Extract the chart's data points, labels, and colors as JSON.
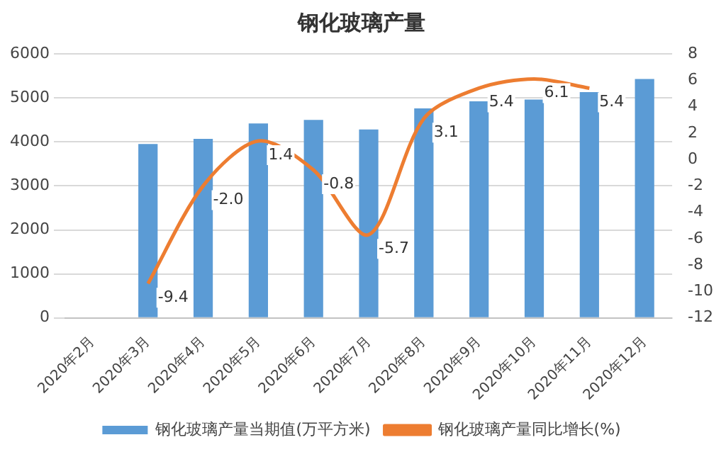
{
  "chart_data": {
    "type": "bar",
    "title": "钢化玻璃产量",
    "categories": [
      "2020年2月",
      "2020年3月",
      "2020年4月",
      "2020年5月",
      "2020年6月",
      "2020年7月",
      "2020年8月",
      "2020年9月",
      "2020年10月",
      "2020年11月",
      "2020年12月"
    ],
    "series": [
      {
        "name": "钢化玻璃产量当期值(万平方米)",
        "color": "#5b9bd5",
        "values": [
          null,
          3950,
          4070,
          4420,
          4500,
          4280,
          4760,
          4920,
          4960,
          5130,
          5430
        ]
      },
      {
        "name": "钢化玻璃产量同比增长(%)",
        "type": "line",
        "axis": "y2",
        "color": "#ed7d31",
        "values": [
          null,
          -9.4,
          -2.0,
          1.4,
          -0.8,
          -5.7,
          3.1,
          5.4,
          6.1,
          5.4,
          null
        ],
        "value_labels": [
          null,
          "-9.4",
          "-2.0",
          "1.4",
          "-0.8",
          "-5.7",
          "3.1",
          "5.4",
          "6.1",
          "5.4",
          null
        ]
      }
    ],
    "ylim": [
      0,
      6000
    ],
    "yticks": [
      0,
      1000,
      2000,
      3000,
      4000,
      5000,
      6000
    ],
    "y2lim": [
      -12,
      8
    ],
    "y2ticks": [
      -12,
      -10,
      -8,
      -6,
      -4,
      -2,
      0,
      2,
      4,
      6,
      8
    ],
    "grid": "y",
    "legend": "bottom",
    "marker": "none"
  }
}
